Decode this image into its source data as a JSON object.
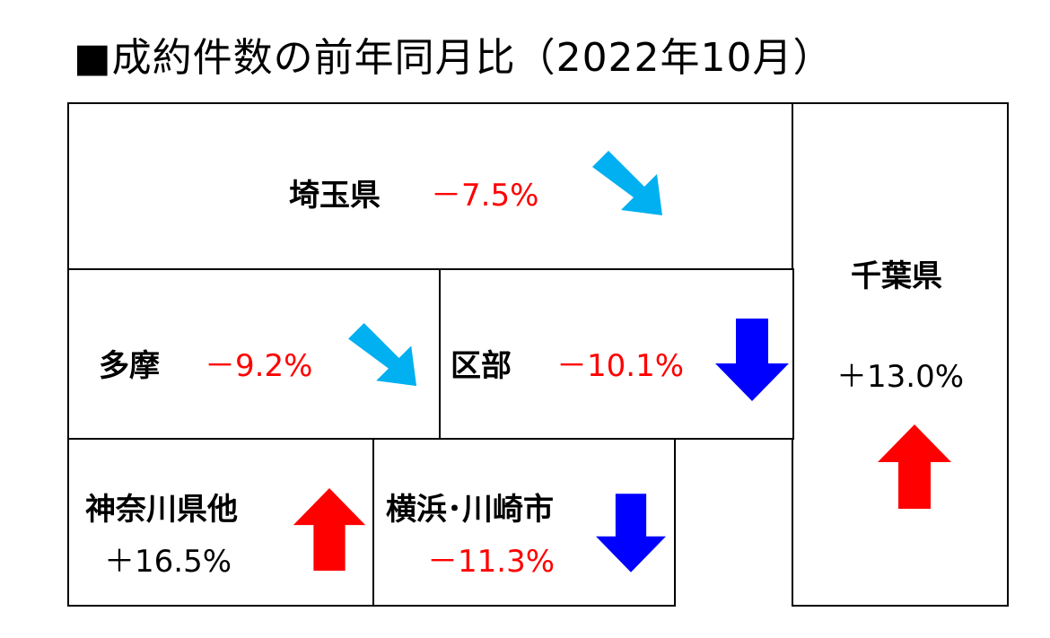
{
  "title": "■成約件数の前年同月比（2022年10月）",
  "colors": {
    "up": "#ff0000",
    "down_strong": "#0000ff",
    "down_mild": "#00b0f0",
    "negative_text": "#ff0000"
  },
  "regions": {
    "saitama": {
      "name": "埼玉県",
      "change": "－7.5%",
      "arrow": "arrow-down-right-icon"
    },
    "tama": {
      "name": "多摩",
      "change": "－9.2%",
      "arrow": "arrow-down-right-icon"
    },
    "kubu": {
      "name": "区部",
      "change": "－10.1%",
      "arrow": "arrow-down-icon"
    },
    "chiba": {
      "name": "千葉県",
      "change": "＋13.0%",
      "arrow": "arrow-up-icon"
    },
    "kanagawa": {
      "name": "神奈川県他",
      "change": "＋16.5%",
      "arrow": "arrow-up-icon"
    },
    "yokohama": {
      "name": "横浜･川崎市",
      "change": "－11.3%",
      "arrow": "arrow-down-icon"
    }
  }
}
